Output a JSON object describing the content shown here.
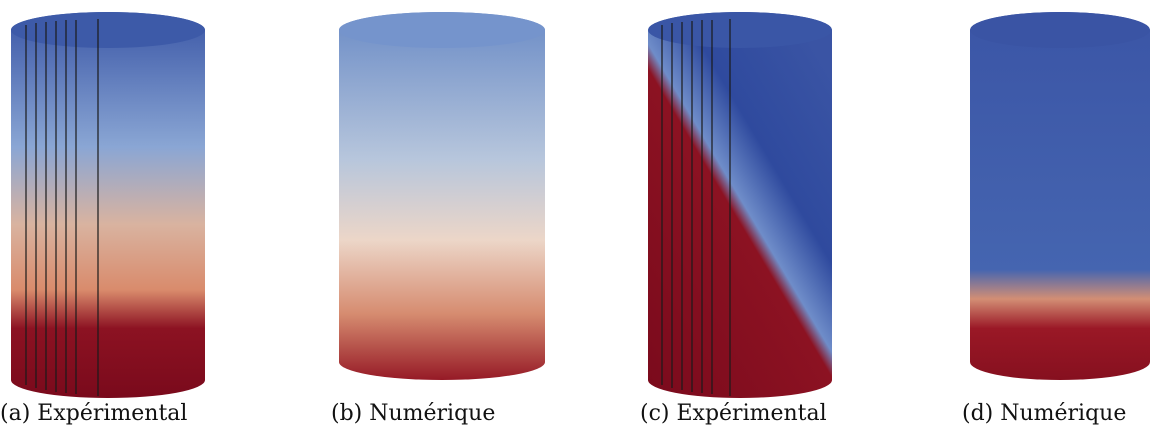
{
  "captions": [
    "(a) Expérimental",
    "(b) Numérique",
    "(c) Expérimental",
    "(d) Numérique"
  ]
}
